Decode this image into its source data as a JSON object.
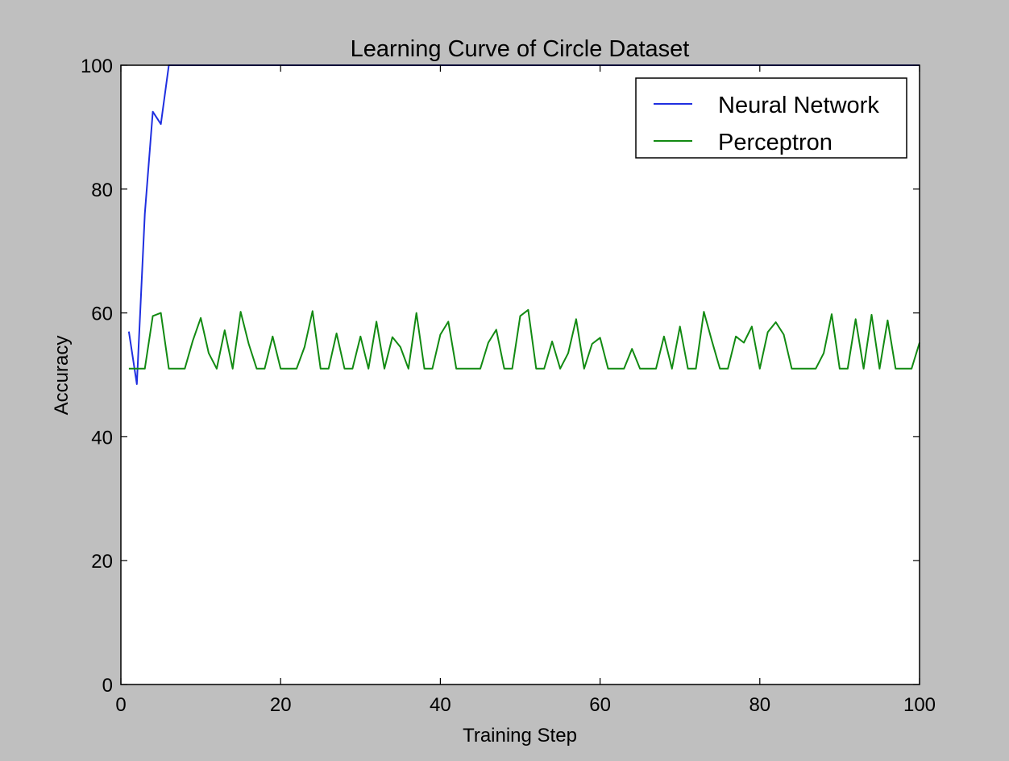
{
  "chart_data": {
    "type": "line",
    "title": "Learning Curve of Circle Dataset",
    "xlabel": "Training Step",
    "ylabel": "Accuracy",
    "xlim": [
      0,
      100
    ],
    "ylim": [
      0,
      100
    ],
    "xticks": [
      0,
      20,
      40,
      60,
      80,
      100
    ],
    "yticks": [
      0,
      20,
      40,
      60,
      80,
      100
    ],
    "grid": false,
    "legend_placement": "top-right",
    "series": [
      {
        "name": "Neural Network",
        "color": "#1f2fe0",
        "x": [
          1,
          2,
          3,
          4,
          5,
          6,
          7,
          8,
          9,
          10,
          11,
          12,
          13,
          14,
          15,
          16,
          17,
          18,
          19,
          20,
          21,
          22,
          23,
          24,
          25,
          26,
          27,
          28,
          29,
          30,
          31,
          32,
          33,
          34,
          35,
          36,
          37,
          38,
          39,
          40,
          41,
          42,
          43,
          44,
          45,
          46,
          47,
          48,
          49,
          50,
          51,
          52,
          53,
          54,
          55,
          56,
          57,
          58,
          59,
          60,
          61,
          62,
          63,
          64,
          65,
          66,
          67,
          68,
          69,
          70,
          71,
          72,
          73,
          74,
          75,
          76,
          77,
          78,
          79,
          80,
          81,
          82,
          83,
          84,
          85,
          86,
          87,
          88,
          89,
          90,
          91,
          92,
          93,
          94,
          95,
          96,
          97,
          98,
          99,
          100
        ],
        "y": [
          57,
          48.5,
          76,
          92.5,
          90.5,
          100,
          100,
          100,
          100,
          100,
          100,
          100,
          100,
          100,
          100,
          100,
          100,
          100,
          100,
          100,
          100,
          100,
          100,
          100,
          100,
          100,
          100,
          100,
          100,
          100,
          100,
          100,
          100,
          100,
          100,
          100,
          100,
          100,
          100,
          100,
          100,
          100,
          100,
          100,
          100,
          100,
          100,
          100,
          100,
          100,
          100,
          100,
          100,
          100,
          100,
          100,
          100,
          100,
          100,
          100,
          100,
          100,
          100,
          100,
          100,
          100,
          100,
          100,
          100,
          100,
          100,
          100,
          100,
          100,
          100,
          100,
          100,
          100,
          100,
          100,
          100,
          100,
          100,
          100,
          100,
          100,
          100,
          100,
          100,
          100,
          100,
          100,
          100,
          100,
          100,
          100,
          100,
          100,
          100,
          100
        ]
      },
      {
        "name": "Perceptron",
        "color": "#128a12",
        "x": [
          1,
          2,
          3,
          4,
          5,
          6,
          7,
          8,
          9,
          10,
          11,
          12,
          13,
          14,
          15,
          16,
          17,
          18,
          19,
          20,
          21,
          22,
          23,
          24,
          25,
          26,
          27,
          28,
          29,
          30,
          31,
          32,
          33,
          34,
          35,
          36,
          37,
          38,
          39,
          40,
          41,
          42,
          43,
          44,
          45,
          46,
          47,
          48,
          49,
          50,
          51,
          52,
          53,
          54,
          55,
          56,
          57,
          58,
          59,
          60,
          61,
          62,
          63,
          64,
          65,
          66,
          67,
          68,
          69,
          70,
          71,
          72,
          73,
          74,
          75,
          76,
          77,
          78,
          79,
          80,
          81,
          82,
          83,
          84,
          85,
          86,
          87,
          88,
          89,
          90,
          91,
          92,
          93,
          94,
          95,
          96,
          97,
          98,
          99,
          100
        ],
        "y": [
          51,
          51,
          51,
          59.5,
          60,
          51,
          51,
          51,
          55.5,
          59.2,
          53.5,
          51,
          57.2,
          51,
          60.2,
          55,
          51,
          51,
          56.2,
          51,
          51,
          51,
          54.5,
          60.3,
          51,
          51,
          56.7,
          51,
          51,
          56.2,
          51,
          58.6,
          51,
          56.1,
          54.5,
          51,
          60,
          51,
          51,
          56.5,
          58.6,
          51,
          51,
          51,
          51,
          55.2,
          57.3,
          51,
          51,
          59.5,
          60.5,
          51,
          51,
          55.4,
          51,
          53.5,
          59,
          51,
          55,
          56,
          51,
          51,
          51,
          54.2,
          51,
          51,
          51,
          56.2,
          51,
          57.8,
          51,
          51,
          60.2,
          55.5,
          51,
          51,
          56.2,
          55.2,
          57.8,
          51,
          56.9,
          58.5,
          56.5,
          51,
          51,
          51,
          51,
          53.5,
          59.8,
          51,
          51,
          59,
          51,
          59.7,
          51,
          58.8,
          51,
          51,
          51,
          55.2
        ]
      }
    ]
  }
}
